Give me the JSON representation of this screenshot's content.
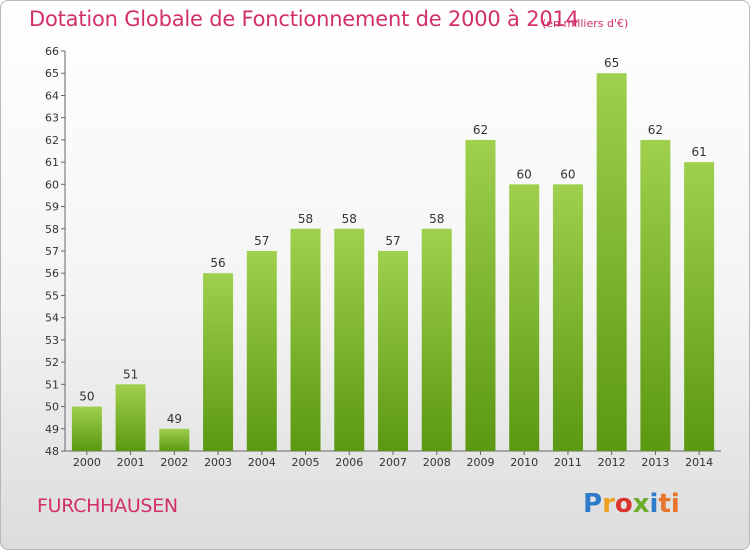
{
  "header": {
    "title": "Dotation Globale de Fonctionnement de 2000 à 2014",
    "subtitle": "(en milliers d'€)"
  },
  "footer": {
    "commune": "FURCHHAUSEN",
    "logo": "Proxiti"
  },
  "colors": {
    "title": "#d22f6c",
    "bar_top": "#9fd04e",
    "bar_bottom": "#5b9812"
  },
  "chart_data": {
    "type": "bar",
    "title": "Dotation Globale de Fonctionnement de 2000 à 2014",
    "subtitle": "(en milliers d'€)",
    "xlabel": "",
    "ylabel": "",
    "categories": [
      "2000",
      "2001",
      "2002",
      "2003",
      "2004",
      "2005",
      "2006",
      "2007",
      "2008",
      "2009",
      "2010",
      "2011",
      "2012",
      "2013",
      "2014"
    ],
    "values": [
      50,
      51,
      49,
      56,
      57,
      58,
      58,
      57,
      58,
      62,
      60,
      60,
      65,
      62,
      61
    ],
    "ylim": [
      48,
      66
    ],
    "yticks": [
      48,
      49,
      50,
      51,
      52,
      53,
      54,
      55,
      56,
      57,
      58,
      59,
      60,
      61,
      62,
      63,
      64,
      65,
      66
    ],
    "grid": false,
    "legend": "none"
  }
}
